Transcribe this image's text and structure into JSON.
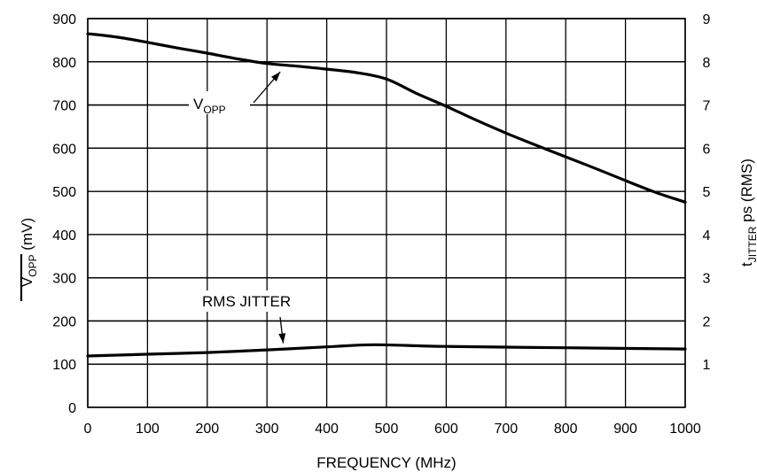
{
  "chart_data": {
    "type": "line",
    "xlabel": "FREQUENCY (MHz)",
    "ylabel": {
      "main": "V",
      "sub": "OPP",
      "rest": " (mV)"
    },
    "y2label": {
      "main": "t",
      "sub": "JITTER",
      "rest": " ps (RMS)"
    },
    "xlim": [
      0,
      1000
    ],
    "ylim": [
      0,
      900
    ],
    "y2lim": [
      0,
      9
    ],
    "xticks": [
      "0",
      "100",
      "200",
      "300",
      "400",
      "500",
      "600",
      "700",
      "800",
      "900",
      "1000"
    ],
    "yticks": [
      "0",
      "100",
      "200",
      "300",
      "400",
      "500",
      "600",
      "700",
      "800",
      "900"
    ],
    "y2ticks": [
      "1",
      "2",
      "3",
      "4",
      "5",
      "6",
      "7",
      "8",
      "9"
    ],
    "grid": true,
    "series": [
      {
        "name": "VOPP",
        "axis": "left",
        "x": [
          0,
          50,
          100,
          150,
          200,
          250,
          300,
          350,
          400,
          450,
          500,
          550,
          600,
          650,
          700,
          750,
          800,
          850,
          900,
          950,
          1000
        ],
        "values": [
          865,
          857,
          845,
          832,
          820,
          807,
          796,
          790,
          783,
          775,
          760,
          727,
          697,
          665,
          635,
          607,
          580,
          553,
          525,
          498,
          475
        ]
      },
      {
        "name": "RMS JITTER",
        "axis": "right",
        "x": [
          0,
          100,
          200,
          300,
          400,
          480,
          600,
          800,
          1000
        ],
        "values": [
          1.19,
          1.23,
          1.27,
          1.33,
          1.4,
          1.45,
          1.41,
          1.38,
          1.35
        ]
      }
    ],
    "annotations": [
      {
        "text": {
          "main": "V",
          "sub": "OPP"
        },
        "target": "VOPP",
        "at_x": 340
      },
      {
        "text": "RMS JITTER",
        "target": "RMS JITTER",
        "at_x": 345
      }
    ]
  }
}
